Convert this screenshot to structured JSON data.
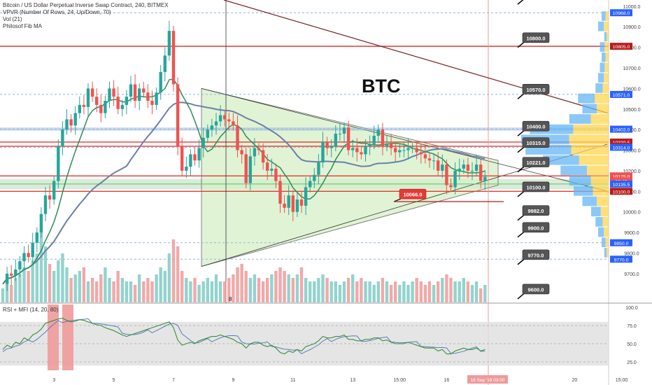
{
  "legend": {
    "title": "Bitcoin / US Dollar Perpetual Inverse Swap Contract, 240, BITMEX",
    "vpvr": "VPVR (Number Of Rows, 24, Up/Down, 70)",
    "vol": "Vol (21)",
    "fib": "Philosof Fib MA",
    "rsi": "RSI + MFI (14, 20, 80)"
  },
  "annotation_text": "BTC",
  "colors": {
    "up": "#26a69a",
    "down": "#ef5350",
    "ma_green": "#2e8b57",
    "ma_blue": "#6b7fa8",
    "triangle_fill": "#d6f0c8",
    "red_line": "#e53935",
    "blue_line": "#90b4e0",
    "dark_line": "#7a1f1f",
    "label_bg": "#555555"
  },
  "chart_data": {
    "type": "candlestick",
    "symbol": "BTC",
    "ylim": [
      9560,
      11030
    ],
    "price_ticks": [
      "11000.0",
      "10900.0",
      "10800.0",
      "10700.0",
      "10600.0",
      "10500.0",
      "10400.0",
      "10300.0",
      "10200.0",
      "10100.0",
      "10000.0",
      "9900.0",
      "9800.0",
      "9700.0"
    ],
    "x_ticks": [
      {
        "label": "3",
        "i": 12
      },
      {
        "label": "5",
        "i": 26
      },
      {
        "label": "7",
        "i": 40
      },
      {
        "label": "9",
        "i": 54
      },
      {
        "label": "11",
        "i": 68
      },
      {
        "label": "13",
        "i": 82
      },
      {
        "label": "15:00",
        "i": 93
      },
      {
        "label": "16",
        "i": 104
      },
      {
        "label": "20",
        "i": 134
      },
      {
        "label": "15:00",
        "i": 145
      }
    ],
    "closes": [
      9650,
      9700,
      9690,
      9720,
      9760,
      9800,
      9780,
      9850,
      9900,
      9990,
      10080,
      10060,
      10150,
      10320,
      10400,
      10450,
      10420,
      10480,
      10520,
      10510,
      10600,
      10560,
      10520,
      10480,
      10540,
      10600,
      10560,
      10500,
      10520,
      10560,
      10620,
      10540,
      10600,
      10580,
      10540,
      10520,
      10580,
      10680,
      10760,
      10880,
      10620,
      10320,
      10200,
      10220,
      10280,
      10250,
      10310,
      10360,
      10400,
      10420,
      10440,
      10470,
      10450,
      10440,
      10420,
      10300,
      10280,
      10140,
      10270,
      10310,
      10300,
      10240,
      10200,
      10210,
      10150,
      10040,
      10020,
      10080,
      10000,
      10060,
      10030,
      10120,
      10150,
      10180,
      10240,
      10340,
      10310,
      10320,
      10380,
      10380,
      10410,
      10300,
      10310,
      10290,
      10280,
      10320,
      10330,
      10370,
      10400,
      10320,
      10330,
      10310,
      10290,
      10300,
      10300,
      10310,
      10310,
      10290,
      10280,
      10260,
      10250,
      10250,
      10200,
      10230,
      10130,
      10120,
      10200,
      10210,
      10230,
      10200,
      10200,
      10230,
      10150,
      10170
    ],
    "drawn_candles": 114,
    "volume_levels": [
      0.2,
      0.3,
      0.25,
      0.35,
      0.4,
      0.5,
      0.45,
      0.6,
      0.7,
      1.0,
      0.8,
      0.55,
      0.45,
      0.6,
      0.7,
      0.5,
      0.35,
      0.4,
      0.45,
      0.5,
      0.3,
      0.35,
      0.3,
      0.4,
      0.5,
      0.35,
      0.3,
      0.45,
      0.35,
      0.3,
      0.3,
      0.25,
      0.4,
      0.3,
      0.35,
      0.3,
      0.4,
      0.5,
      0.45,
      0.7,
      0.9,
      0.8,
      0.45,
      0.35,
      0.3,
      0.35,
      0.25,
      0.3,
      0.35,
      0.3,
      0.4,
      0.3,
      0.3,
      0.35,
      0.4,
      0.5,
      0.55,
      0.45,
      0.35,
      0.4,
      0.35,
      0.3,
      0.35,
      0.4,
      0.45,
      0.5,
      0.45,
      0.4,
      0.35,
      0.4,
      0.5,
      0.35,
      0.3,
      0.3,
      0.35,
      0.4,
      0.35,
      0.3,
      0.3,
      0.25,
      0.3,
      0.35,
      0.4,
      0.3,
      0.35,
      0.3,
      0.3,
      0.25,
      0.3,
      0.35,
      0.3,
      0.25,
      0.3,
      0.25,
      0.3,
      0.25,
      0.3,
      0.35,
      0.3,
      0.25,
      0.3,
      0.25,
      0.3,
      0.35,
      0.4,
      0.35,
      0.3,
      0.3,
      0.35,
      0.3,
      0.25,
      0.3,
      0.2,
      0.25
    ],
    "rsi_ticks": [
      "100.0",
      "75.0",
      "50.0",
      "25.0"
    ],
    "rsi_values": [
      42,
      48,
      45,
      52,
      50,
      58,
      55,
      62,
      65,
      70,
      78,
      80,
      82,
      84,
      85,
      82,
      80,
      81,
      83,
      82,
      80,
      78,
      76,
      75,
      72,
      70,
      68,
      65,
      62,
      60,
      62,
      64,
      66,
      68,
      70,
      72,
      74,
      76,
      78,
      80,
      72,
      55,
      48,
      50,
      52,
      50,
      54,
      56,
      58,
      60,
      60,
      62,
      60,
      58,
      56,
      52,
      50,
      44,
      50,
      52,
      52,
      48,
      46,
      48,
      44,
      38,
      36,
      40,
      38,
      42,
      40,
      46,
      48,
      50,
      54,
      60,
      58,
      58,
      60,
      60,
      62,
      56,
      56,
      54,
      54,
      56,
      56,
      58,
      58,
      54,
      55,
      52,
      50,
      50,
      50,
      52,
      50,
      48,
      46,
      44,
      44,
      44,
      40,
      42,
      36,
      36,
      40,
      42,
      44,
      42,
      42,
      44,
      40,
      42
    ],
    "horizontal_levels": [
      {
        "price": 10968.0,
        "kind": "blue"
      },
      {
        "price": 10805.0,
        "kind": "red"
      },
      {
        "price": 10571.0,
        "kind": "blue"
      },
      {
        "price": 10402.0,
        "kind": "blue"
      },
      {
        "price": 10339.5,
        "kind": "red"
      },
      {
        "price": 10319.0,
        "kind": "red"
      },
      {
        "price": 10314.0,
        "kind": "blue"
      },
      {
        "price": 10175.0,
        "kind": "red"
      },
      {
        "price": 10135.5,
        "kind": "green"
      },
      {
        "price": 10100.0,
        "kind": "red"
      },
      {
        "price": 9850.0,
        "kind": "blue"
      },
      {
        "price": 9770.0,
        "kind": "blue"
      }
    ],
    "callouts": [
      {
        "text": "10970.0",
        "price": 11050
      },
      {
        "text": "10800.0",
        "price": 10840
      },
      {
        "text": "10570.0",
        "price": 10590
      },
      {
        "text": "10400.0",
        "price": 10410
      },
      {
        "text": "10315.0",
        "price": 10330
      },
      {
        "text": "10221.0",
        "price": 10235
      },
      {
        "text": "10100.0",
        "price": 10115
      },
      {
        "text": "9982.0",
        "price": 10000
      },
      {
        "text": "9900.0",
        "price": 9918
      },
      {
        "text": "9770.0",
        "price": 9785
      },
      {
        "text": "9600.0",
        "price": 9618
      }
    ],
    "red_callout": {
      "text": "10066.0",
      "price": 10080
    },
    "axis_labels": [
      {
        "text": "10968.0",
        "price": 10968.0,
        "bg": "#2962ff"
      },
      {
        "text": "10805.0",
        "price": 10805.0,
        "bg": "#b71c1c"
      },
      {
        "text": "10571.0",
        "price": 10571.0,
        "bg": "#2962ff"
      },
      {
        "text": "10402.0",
        "price": 10402.0,
        "bg": "#2962ff"
      },
      {
        "text": "10339.5",
        "price": 10339.5,
        "bg": "#b71c1c"
      },
      {
        "text": "10319.0",
        "price": 10319.0,
        "bg": "#b71c1c"
      },
      {
        "text": "10314.0",
        "price": 10314.0,
        "bg": "#2962ff"
      },
      {
        "text": "10175.0",
        "price": 10175.0,
        "bg": "#ef5350"
      },
      {
        "text": "15:49",
        "price": 10150.0,
        "bg": "#ef5350"
      },
      {
        "text": "10135.5",
        "price": 10135.5,
        "bg": "#2962ff"
      },
      {
        "text": "10100.0",
        "price": 10100.0,
        "bg": "#b71c1c"
      },
      {
        "text": "9850.0",
        "price": 9850.0,
        "bg": "#2962ff"
      },
      {
        "text": "9770.0",
        "price": 9770.0,
        "bg": "#2962ff"
      }
    ],
    "date_label": "18 Sep '19   03:00",
    "axis_marker_8": "8"
  }
}
